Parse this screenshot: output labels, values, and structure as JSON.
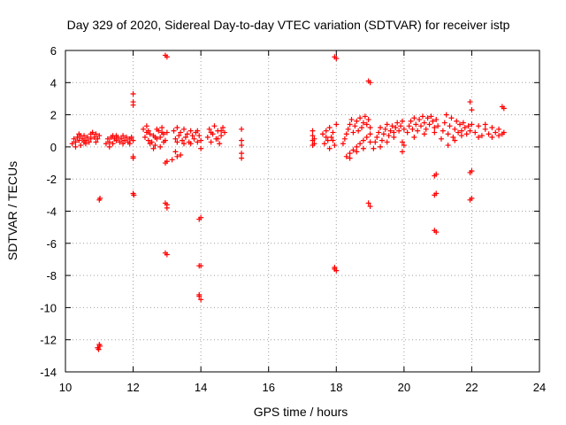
{
  "chart_data": {
    "type": "scatter",
    "title": "Day 329 of 2020, Sidereal Day-to-day VTEC variation (SDTVAR) for receiver istp",
    "xlabel": "GPS time / hours",
    "ylabel": "SDTVAR / TECUs",
    "xlim": [
      10,
      24
    ],
    "ylim": [
      -14,
      6
    ],
    "xticks": [
      10,
      12,
      14,
      16,
      18,
      20,
      22,
      24
    ],
    "yticks": [
      -14,
      -12,
      -10,
      -8,
      -6,
      -4,
      -2,
      0,
      2,
      4,
      6
    ],
    "grid": true,
    "marker": "+",
    "color": "#ff0000",
    "series": [
      {
        "name": "SDTVAR",
        "points": [
          [
            10.2,
            0.2
          ],
          [
            10.25,
            0.5
          ],
          [
            10.3,
            0.3
          ],
          [
            10.35,
            0.6
          ],
          [
            10.4,
            0.4
          ],
          [
            10.45,
            0.1
          ],
          [
            10.5,
            0.5
          ],
          [
            10.55,
            0.7
          ],
          [
            10.6,
            0.4
          ],
          [
            10.65,
            0.6
          ],
          [
            10.7,
            0.3
          ],
          [
            10.75,
            0.8
          ],
          [
            10.8,
            0.9
          ],
          [
            10.85,
            0.6
          ],
          [
            10.9,
            0.8
          ],
          [
            10.95,
            0.5
          ],
          [
            11.0,
            0.7
          ],
          [
            10.3,
            0.0
          ],
          [
            10.45,
            0.7
          ],
          [
            10.6,
            0.2
          ],
          [
            10.75,
            0.5
          ],
          [
            10.9,
            0.3
          ],
          [
            10.4,
            0.8
          ],
          [
            10.55,
            0.3
          ],
          [
            11.2,
            0.2
          ],
          [
            11.25,
            0.5
          ],
          [
            11.3,
            0.3
          ],
          [
            11.35,
            0.6
          ],
          [
            11.4,
            0.2
          ],
          [
            11.45,
            0.5
          ],
          [
            11.5,
            0.4
          ],
          [
            11.55,
            0.6
          ],
          [
            11.6,
            0.3
          ],
          [
            11.65,
            0.5
          ],
          [
            11.7,
            0.7
          ],
          [
            11.75,
            0.4
          ],
          [
            11.8,
            0.6
          ],
          [
            11.85,
            0.3
          ],
          [
            11.9,
            0.5
          ],
          [
            11.95,
            0.6
          ],
          [
            12.0,
            0.4
          ],
          [
            11.3,
            0.0
          ],
          [
            11.5,
            0.7
          ],
          [
            11.7,
            0.2
          ],
          [
            11.9,
            0.2
          ],
          [
            11.4,
            0.7
          ],
          [
            12.3,
            1.1
          ],
          [
            12.35,
            0.6
          ],
          [
            12.4,
            0.9
          ],
          [
            12.45,
            0.4
          ],
          [
            12.5,
            0.8
          ],
          [
            12.55,
            0.3
          ],
          [
            12.6,
            0.7
          ],
          [
            12.65,
            0.1
          ],
          [
            12.7,
            0.5
          ],
          [
            12.75,
            1.0
          ],
          [
            12.8,
            0.6
          ],
          [
            12.85,
            1.2
          ],
          [
            12.9,
            0.8
          ],
          [
            12.95,
            0.4
          ],
          [
            13.0,
            0.9
          ],
          [
            12.4,
            1.3
          ],
          [
            12.5,
            0.2
          ],
          [
            12.6,
            -0.1
          ],
          [
            12.7,
            1.1
          ],
          [
            12.8,
            0.0
          ],
          [
            12.9,
            0.3
          ],
          [
            12.45,
            1.0
          ],
          [
            12.65,
            0.6
          ],
          [
            12.85,
            0.9
          ],
          [
            13.2,
            1.0
          ],
          [
            13.25,
            0.5
          ],
          [
            13.3,
            1.2
          ],
          [
            13.35,
            0.7
          ],
          [
            13.4,
            0.9
          ],
          [
            13.45,
            0.4
          ],
          [
            13.5,
            1.1
          ],
          [
            13.55,
            0.6
          ],
          [
            13.6,
            0.8
          ],
          [
            13.65,
            0.3
          ],
          [
            13.7,
            1.0
          ],
          [
            13.75,
            0.7
          ],
          [
            13.8,
            0.5
          ],
          [
            13.85,
            0.9
          ],
          [
            13.9,
            0.3
          ],
          [
            13.95,
            0.7
          ],
          [
            14.0,
            0.4
          ],
          [
            13.3,
            0.3
          ],
          [
            13.5,
            0.2
          ],
          [
            13.7,
            0.2
          ],
          [
            13.9,
            1.0
          ],
          [
            14.2,
            0.6
          ],
          [
            14.25,
            1.1
          ],
          [
            14.3,
            0.3
          ],
          [
            14.35,
            0.8
          ],
          [
            14.4,
            1.3
          ],
          [
            14.45,
            0.5
          ],
          [
            14.5,
            1.0
          ],
          [
            14.55,
            0.2
          ],
          [
            14.6,
            0.7
          ],
          [
            14.65,
            1.2
          ],
          [
            14.7,
            0.9
          ],
          [
            14.3,
            0.9
          ],
          [
            14.5,
            0.5
          ],
          [
            14.6,
            1.0
          ],
          [
            15.2,
            1.1
          ],
          [
            15.2,
            0.4
          ],
          [
            15.2,
            0.1
          ],
          [
            15.2,
            -0.4
          ],
          [
            15.2,
            -0.7
          ],
          [
            17.3,
            1.0
          ],
          [
            17.3,
            0.7
          ],
          [
            17.3,
            0.4
          ],
          [
            17.3,
            0.1
          ],
          [
            17.35,
            0.5
          ],
          [
            17.35,
            0.2
          ],
          [
            17.6,
            0.8
          ],
          [
            17.65,
            0.2
          ],
          [
            17.7,
            1.0
          ],
          [
            17.75,
            0.4
          ],
          [
            17.8,
            1.2
          ],
          [
            17.85,
            0.6
          ],
          [
            17.9,
            0.9
          ],
          [
            17.95,
            0.1
          ],
          [
            18.0,
            1.4
          ],
          [
            17.7,
            0.6
          ],
          [
            17.8,
            -0.1
          ],
          [
            17.9,
            0.4
          ],
          [
            18.2,
            0.2
          ],
          [
            18.25,
            0.5
          ],
          [
            18.3,
            0.8
          ],
          [
            18.35,
            1.1
          ],
          [
            18.4,
            1.4
          ],
          [
            18.45,
            1.7
          ],
          [
            18.5,
            0.9
          ],
          [
            18.55,
            1.3
          ],
          [
            18.6,
            1.6
          ],
          [
            18.65,
            1.0
          ],
          [
            18.7,
            1.8
          ],
          [
            18.75,
            1.2
          ],
          [
            18.8,
            1.5
          ],
          [
            18.85,
            1.9
          ],
          [
            18.9,
            1.4
          ],
          [
            18.95,
            1.7
          ],
          [
            19.0,
            1.2
          ],
          [
            18.3,
            -0.6
          ],
          [
            18.4,
            -0.4
          ],
          [
            18.5,
            -0.2
          ],
          [
            18.6,
            0.0
          ],
          [
            18.7,
            0.2
          ],
          [
            18.8,
            0.4
          ],
          [
            18.9,
            0.6
          ],
          [
            19.0,
            0.8
          ],
          [
            18.4,
            -0.7
          ],
          [
            18.6,
            -0.3
          ],
          [
            18.8,
            -0.1
          ],
          [
            19.0,
            0.3
          ],
          [
            19.1,
            -0.1
          ],
          [
            19.15,
            0.3
          ],
          [
            19.2,
            0.6
          ],
          [
            19.25,
            0.9
          ],
          [
            19.3,
            1.2
          ],
          [
            19.35,
            0.4
          ],
          [
            19.4,
            0.8
          ],
          [
            19.45,
            1.1
          ],
          [
            19.5,
            1.4
          ],
          [
            19.55,
            0.7
          ],
          [
            19.6,
            1.0
          ],
          [
            19.65,
            1.3
          ],
          [
            19.7,
            0.9
          ],
          [
            19.75,
            1.2
          ],
          [
            19.8,
            1.5
          ],
          [
            19.85,
            1.0
          ],
          [
            19.9,
            1.3
          ],
          [
            19.95,
            1.6
          ],
          [
            20.0,
            1.1
          ],
          [
            19.3,
            0.0
          ],
          [
            19.5,
            0.3
          ],
          [
            19.7,
            0.6
          ],
          [
            20.1,
            0.9
          ],
          [
            20.15,
            1.3
          ],
          [
            20.2,
            1.6
          ],
          [
            20.25,
            1.1
          ],
          [
            20.3,
            1.8
          ],
          [
            20.35,
            1.4
          ],
          [
            20.4,
            1.0
          ],
          [
            20.45,
            1.7
          ],
          [
            20.5,
            1.3
          ],
          [
            20.55,
            1.9
          ],
          [
            20.6,
            1.5
          ],
          [
            20.65,
            1.1
          ],
          [
            20.7,
            1.8
          ],
          [
            20.75,
            1.4
          ],
          [
            20.8,
            1.9
          ],
          [
            20.85,
            1.6
          ],
          [
            20.9,
            1.2
          ],
          [
            20.95,
            1.7
          ],
          [
            21.0,
            1.3
          ],
          [
            20.3,
            0.6
          ],
          [
            20.6,
            0.8
          ],
          [
            20.9,
            0.9
          ],
          [
            21.1,
            0.5
          ],
          [
            21.15,
            1.0
          ],
          [
            21.2,
            1.5
          ],
          [
            21.25,
            2.0
          ],
          [
            21.3,
            0.8
          ],
          [
            21.35,
            1.3
          ],
          [
            21.4,
            1.8
          ],
          [
            21.45,
            0.6
          ],
          [
            21.5,
            1.1
          ],
          [
            21.55,
            1.6
          ],
          [
            21.6,
            0.9
          ],
          [
            21.65,
            1.4
          ],
          [
            21.7,
            1.0
          ],
          [
            21.75,
            1.5
          ],
          [
            21.8,
            1.2
          ],
          [
            21.85,
            0.8
          ],
          [
            21.9,
            1.3
          ],
          [
            21.95,
            1.0
          ],
          [
            22.0,
            1.4
          ],
          [
            21.3,
            0.1
          ],
          [
            21.5,
            0.4
          ],
          [
            21.7,
            0.7
          ],
          [
            22.1,
            0.9
          ],
          [
            22.2,
            1.3
          ],
          [
            22.3,
            0.7
          ],
          [
            22.4,
            1.1
          ],
          [
            22.5,
            0.8
          ],
          [
            22.6,
            1.2
          ],
          [
            22.7,
            0.9
          ],
          [
            22.8,
            1.1
          ],
          [
            22.9,
            0.8
          ],
          [
            22.95,
            0.9
          ],
          [
            22.2,
            0.6
          ],
          [
            22.4,
            1.4
          ],
          [
            22.6,
            0.6
          ],
          [
            22.8,
            0.7
          ],
          [
            11.0,
            -3.3
          ],
          [
            11.02,
            -3.2
          ],
          [
            10.95,
            -12.5
          ],
          [
            10.98,
            -12.6
          ],
          [
            11.0,
            -12.3
          ],
          [
            11.02,
            -12.4
          ],
          [
            12.0,
            3.3
          ],
          [
            12.0,
            2.8
          ],
          [
            12.0,
            2.6
          ],
          [
            12.0,
            -0.7
          ],
          [
            12.0,
            -0.6
          ],
          [
            12.0,
            -2.9
          ],
          [
            12.02,
            -3.0
          ],
          [
            12.95,
            5.7
          ],
          [
            13.0,
            5.6
          ],
          [
            12.95,
            -1.0
          ],
          [
            13.0,
            -0.9
          ],
          [
            12.95,
            -3.5
          ],
          [
            13.0,
            -3.8
          ],
          [
            13.0,
            -3.6
          ],
          [
            12.95,
            -6.6
          ],
          [
            13.0,
            -6.7
          ],
          [
            13.15,
            -0.8
          ],
          [
            13.25,
            -0.3
          ],
          [
            13.3,
            -0.6
          ],
          [
            13.4,
            -0.5
          ],
          [
            14.0,
            -0.1
          ],
          [
            13.95,
            -4.5
          ],
          [
            14.0,
            -4.4
          ],
          [
            13.95,
            -7.4
          ],
          [
            14.0,
            -7.4
          ],
          [
            13.95,
            -9.2
          ],
          [
            14.0,
            -9.5
          ],
          [
            13.95,
            -9.3
          ],
          [
            17.95,
            5.6
          ],
          [
            18.0,
            5.5
          ],
          [
            17.95,
            -7.6
          ],
          [
            18.0,
            -7.7
          ],
          [
            17.95,
            -7.5
          ],
          [
            18.95,
            4.1
          ],
          [
            19.0,
            4.0
          ],
          [
            18.95,
            -3.5
          ],
          [
            19.0,
            -3.7
          ],
          [
            19.95,
            -0.3
          ],
          [
            19.95,
            0.3
          ],
          [
            20.0,
            0.1
          ],
          [
            20.9,
            -1.8
          ],
          [
            20.95,
            -1.7
          ],
          [
            20.9,
            -3.0
          ],
          [
            20.95,
            -2.9
          ],
          [
            20.9,
            -5.2
          ],
          [
            20.95,
            -5.3
          ],
          [
            21.95,
            2.8
          ],
          [
            22.0,
            2.3
          ],
          [
            21.95,
            -1.6
          ],
          [
            22.0,
            -1.5
          ],
          [
            21.95,
            -3.3
          ],
          [
            22.0,
            -3.2
          ],
          [
            22.9,
            2.5
          ],
          [
            22.95,
            2.4
          ]
        ]
      }
    ]
  }
}
